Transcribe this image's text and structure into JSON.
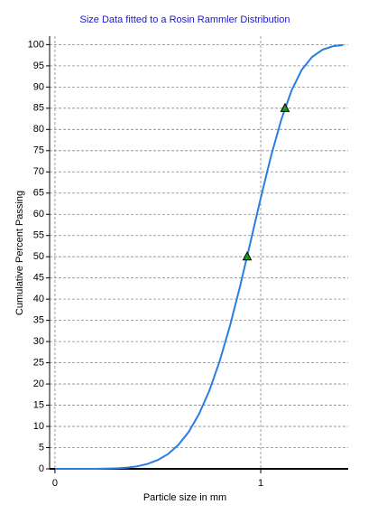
{
  "chart_data": {
    "type": "line",
    "title": "Size Data fitted to a Rosin Rammler Distribution",
    "xlabel": "Particle size in mm",
    "ylabel": "Cumulative Percent Passing",
    "xlim": [
      -0.026,
      1.425
    ],
    "xticks": [
      0,
      1
    ],
    "ylim": [
      0,
      102
    ],
    "yticks": [
      0,
      5,
      10,
      15,
      20,
      25,
      30,
      35,
      40,
      45,
      50,
      55,
      60,
      65,
      70,
      75,
      80,
      85,
      90,
      95,
      100
    ],
    "grid": true,
    "series": [
      {
        "color": "#2b7de0",
        "marker": "none",
        "x": [
          0,
          0.1,
          0.2,
          0.3,
          0.35,
          0.4,
          0.45,
          0.5,
          0.55,
          0.6,
          0.65,
          0.7,
          0.75,
          0.8,
          0.85,
          0.9,
          0.95,
          1.0,
          1.05,
          1.1,
          1.15,
          1.2,
          1.25,
          1.3,
          1.35,
          1.4
        ],
        "values": [
          0,
          0,
          0.01,
          0.12,
          0.28,
          0.6,
          1.16,
          2.08,
          3.5,
          5.66,
          8.7,
          12.9,
          18.4,
          25.3,
          33.6,
          43.1,
          53.4,
          63.8,
          73.7,
          82.3,
          89.2,
          94.1,
          97.1,
          98.8,
          99.6,
          99.9
        ]
      },
      {
        "color": "#1a9a1a",
        "marker": "triangle",
        "x": [
          0.934,
          1.118
        ],
        "values": [
          50,
          85
        ]
      }
    ]
  }
}
